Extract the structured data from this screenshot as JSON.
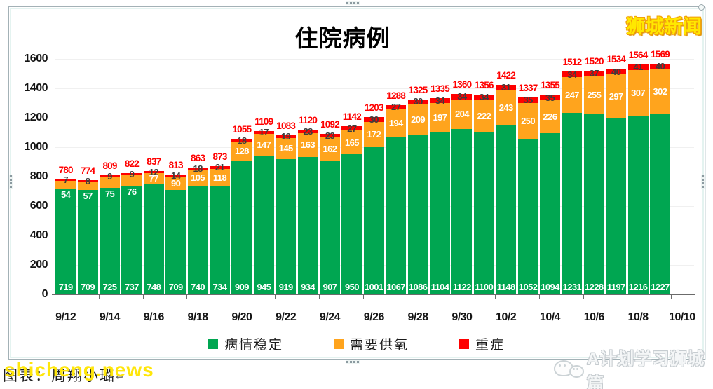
{
  "title": "住院病例",
  "logo": "狮城新闻",
  "legend": [
    {
      "label": "病情稳定",
      "color": "#00a651"
    },
    {
      "label": "需要供氧",
      "color": "#ffa41d"
    },
    {
      "label": "重症",
      "color": "#fe0000"
    }
  ],
  "footer": {
    "credit": "图表：周翔小璐",
    "return_mark": "↵",
    "watermark": "shicheng.news",
    "right_watermark": "A计划学习狮城篇"
  },
  "chart_data": {
    "type": "bar",
    "stacked": true,
    "title": "住院病例",
    "grid": "horizontal",
    "legend_position": "bottom",
    "ylim": [
      0,
      1600
    ],
    "y_ticks": [
      0,
      200,
      400,
      600,
      800,
      1000,
      1200,
      1400,
      1600
    ],
    "x_tick_labels": [
      "9/12",
      "9/14",
      "9/16",
      "9/18",
      "9/20",
      "9/22",
      "9/24",
      "9/26",
      "9/28",
      "9/30",
      "10/2",
      "10/4",
      "10/6",
      "10/8",
      "10/10"
    ],
    "categories": [
      "9/12",
      "9/13",
      "9/14",
      "9/15",
      "9/16",
      "9/17",
      "9/18",
      "9/19",
      "9/20",
      "9/21",
      "9/22",
      "9/23",
      "9/24",
      "9/25",
      "9/26",
      "9/27",
      "9/28",
      "9/29",
      "9/30",
      "10/1",
      "10/2",
      "10/3",
      "10/4",
      "10/5",
      "10/6",
      "10/7",
      "10/8",
      "10/9"
    ],
    "series": [
      {
        "name": "病情稳定",
        "color": "#00a651",
        "label_color": "#ffffff",
        "values": [
          719,
          709,
          725,
          737,
          748,
          709,
          740,
          734,
          909,
          945,
          919,
          934,
          907,
          950,
          1001,
          1067,
          1086,
          1104,
          1122,
          1100,
          1148,
          1052,
          1094,
          1231,
          1228,
          1197,
          1216,
          1227
        ]
      },
      {
        "name": "需要供氧",
        "color": "#ffa41d",
        "label_color": "#ffffff",
        "values": [
          54,
          57,
          75,
          76,
          77,
          90,
          105,
          118,
          128,
          147,
          145,
          163,
          162,
          165,
          172,
          194,
          209,
          197,
          204,
          222,
          243,
          250,
          226,
          247,
          255,
          297,
          307,
          302
        ]
      },
      {
        "name": "重症",
        "color": "#fe0000",
        "label_color": "#3d3d3d",
        "values": [
          7,
          8,
          9,
          9,
          12,
          14,
          18,
          21,
          18,
          17,
          19,
          23,
          23,
          27,
          30,
          27,
          30,
          34,
          34,
          34,
          31,
          35,
          35,
          34,
          37,
          40,
          41,
          40
        ]
      }
    ],
    "totals": [
      780,
      774,
      809,
      822,
      837,
      813,
      863,
      873,
      1055,
      1109,
      1083,
      1120,
      1092,
      1142,
      1203,
      1288,
      1325,
      1335,
      1360,
      1356,
      1422,
      1337,
      1355,
      1512,
      1520,
      1534,
      1564,
      1569
    ],
    "totals_color": "#ff0000"
  }
}
